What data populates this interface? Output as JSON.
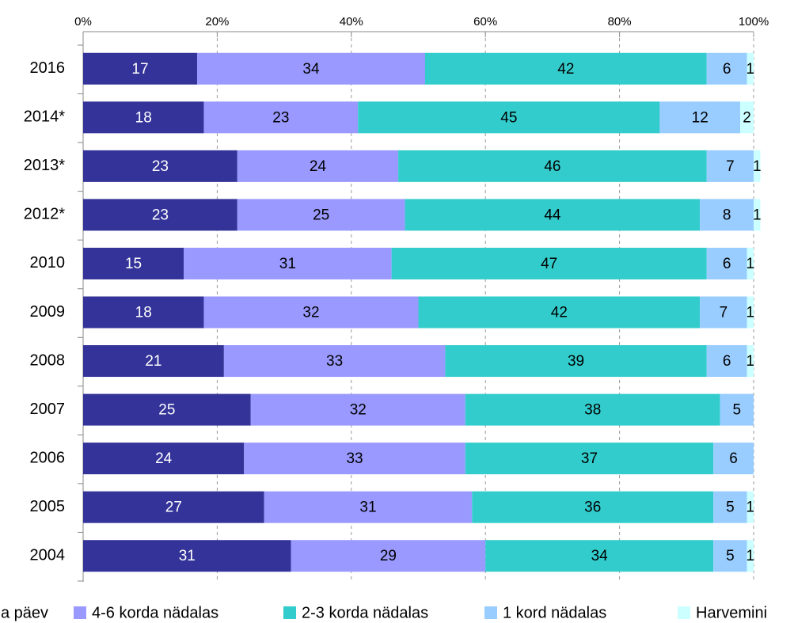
{
  "chart_data": {
    "type": "stacked-bar-horizontal",
    "categories": [
      "2016",
      "2014*",
      "2013*",
      "2012*",
      "2010",
      "2009",
      "2008",
      "2007",
      "2006",
      "2005",
      "2004"
    ],
    "series": [
      {
        "name": "a päev",
        "color": "#333399",
        "values": [
          17,
          18,
          23,
          23,
          15,
          18,
          21,
          25,
          24,
          27,
          31
        ]
      },
      {
        "name": "4-6 korda nädalas",
        "color": "#9999ff",
        "values": [
          34,
          23,
          24,
          25,
          31,
          32,
          33,
          32,
          33,
          31,
          29
        ]
      },
      {
        "name": "2-3 korda nädalas",
        "color": "#33cccc",
        "values": [
          42,
          45,
          46,
          44,
          47,
          42,
          39,
          38,
          37,
          36,
          34
        ]
      },
      {
        "name": "1 kord nädalas",
        "color": "#99ccff",
        "values": [
          6,
          12,
          7,
          8,
          6,
          7,
          6,
          5,
          6,
          5,
          5
        ]
      },
      {
        "name": "Harvemini",
        "color": "#ccffff",
        "values": [
          1,
          2,
          1,
          1,
          1,
          1,
          1,
          null,
          null,
          1,
          1
        ]
      }
    ],
    "xlim": [
      0,
      100
    ],
    "xticks": [
      {
        "value": 0,
        "label": "0%"
      },
      {
        "value": 20,
        "label": "20%"
      },
      {
        "value": 40,
        "label": "40%"
      },
      {
        "value": 60,
        "label": "60%"
      },
      {
        "value": 80,
        "label": "80%"
      },
      {
        "value": 100,
        "label": "100%"
      }
    ],
    "grid": true,
    "legend": "bottom"
  }
}
